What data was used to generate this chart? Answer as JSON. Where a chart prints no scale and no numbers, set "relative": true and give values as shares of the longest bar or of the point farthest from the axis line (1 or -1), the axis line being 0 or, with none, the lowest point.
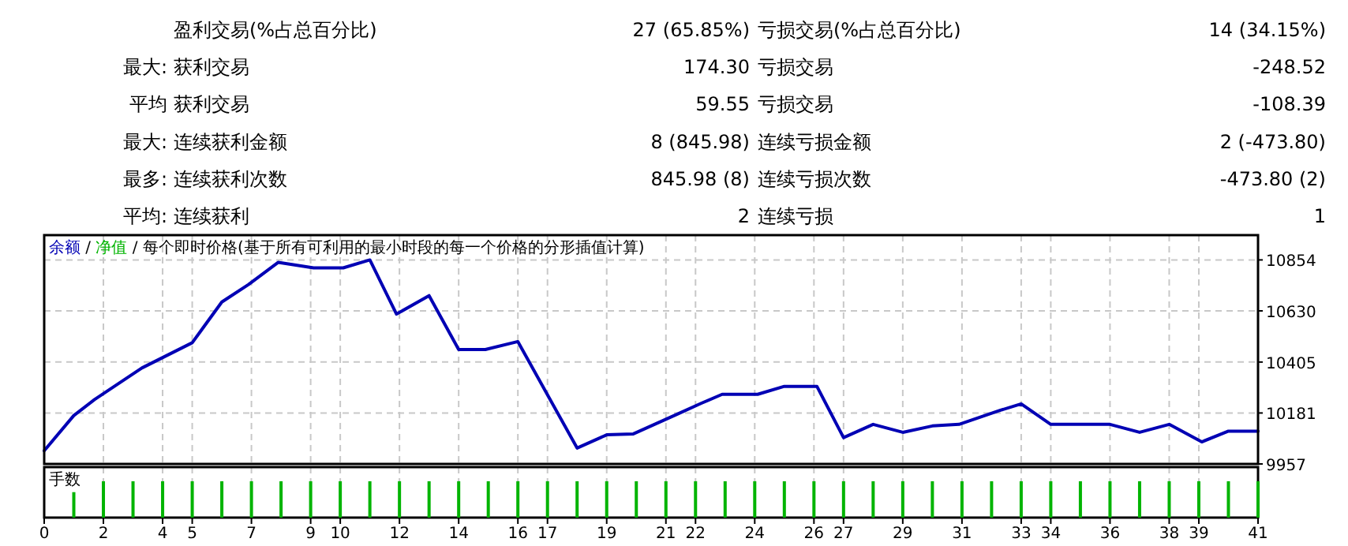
{
  "chart_data": [
    {
      "type": "other",
      "annotations": [
        null,
        "盈利交易(%占总百分比)",
        "27 (65.85%)",
        "亏损交易(%占总百分比)",
        "14 (34.15%)",
        "最大:",
        "获利交易",
        "174.30",
        "亏损交易",
        "-248.52",
        "平均",
        "获利交易",
        "59.55",
        "亏损交易",
        "-108.39",
        "最大:",
        "连续获利金额",
        "8 (845.98)",
        "连续亏损金额",
        "2 (-473.80)",
        "最多:",
        "连续获利次数",
        "845.98 (8)",
        "连续亏损次数",
        "-473.80 (2)",
        "平均:",
        "连续获利",
        "2",
        "连续亏损",
        "1"
      ]
    },
    {
      "type": "line",
      "legend": "top left",
      "grid": true,
      "marker": "none",
      "line_style": "solid",
      "tick_labels": "y",
      "annotations": [
        "/",
        "/ 每个即时价格(基于所有可利用的最小时段的每一个价格的分形插值计算)"
      ],
      "x": [
        0,
        1,
        1.7,
        2.9,
        3.3,
        5,
        6,
        6.9,
        7.9,
        9.1,
        10.1,
        11,
        11.9,
        13,
        14,
        14.9,
        16,
        18,
        19,
        19.9,
        21.4,
        22.2,
        22.9,
        24.1,
        25,
        26.1,
        27,
        28,
        29,
        30,
        30.9,
        32.3,
        33,
        34,
        36,
        37,
        38,
        39.1,
        40,
        41
      ],
      "xlim": [
        0,
        41
      ],
      "ylim": [
        9957,
        10963
      ],
      "yticks": [
        9957,
        10181,
        10405,
        10630,
        10854
      ],
      "xticks": [
        0,
        2,
        4,
        5,
        7,
        9,
        10,
        12,
        14,
        16,
        17,
        19,
        21,
        22,
        24,
        26,
        27,
        29,
        31,
        33,
        34,
        36,
        38,
        39,
        41
      ],
      "series": [
        {
          "name": "余额",
          "color": "#0000b4",
          "values": [
            10015,
            10170,
            10240,
            10344,
            10379,
            10490,
            10669,
            10746,
            10843,
            10819,
            10819,
            10854,
            10616,
            10697,
            10460,
            10460,
            10495,
            10027,
            10085,
            10089,
            10177,
            10224,
            10263,
            10263,
            10298,
            10298,
            10073,
            10131,
            10096,
            10124,
            10131,
            10193,
            10221,
            10131,
            10131,
            10096,
            10131,
            10054,
            10101,
            10101
          ]
        },
        {
          "name": "净值",
          "color": "#00b400",
          "values": [
            null,
            null,
            null,
            null,
            null,
            null,
            null,
            null,
            null,
            null,
            null,
            null,
            null,
            null,
            null,
            null,
            null,
            null,
            null,
            null,
            null,
            null,
            null,
            null,
            null,
            null,
            null,
            null,
            null,
            null,
            null,
            null,
            null,
            null,
            null,
            null,
            null,
            null,
            null,
            null
          ]
        }
      ]
    },
    {
      "type": "bar",
      "title": "手数",
      "relative": true,
      "grid": "x",
      "tick_labels": "x",
      "xlim": [
        0,
        41
      ],
      "xticks": [
        0,
        2,
        4,
        5,
        7,
        9,
        10,
        12,
        14,
        16,
        17,
        19,
        21,
        22,
        24,
        26,
        27,
        29,
        31,
        33,
        34,
        36,
        38,
        39,
        41
      ],
      "x": [
        1,
        2,
        3,
        4,
        5,
        6,
        7,
        8,
        9,
        10,
        11,
        12,
        13,
        14,
        15,
        16,
        17,
        18,
        19,
        20,
        21,
        22,
        23,
        24,
        25,
        26,
        27,
        28,
        29,
        30,
        31,
        32,
        33,
        34,
        35,
        36,
        37,
        38,
        39,
        40,
        41
      ],
      "series": [
        {
          "color": "#00b400",
          "values": [
            0.7,
            1,
            1,
            1,
            1,
            1,
            1,
            1,
            1,
            1,
            1,
            1,
            1,
            1,
            1,
            1,
            1,
            1,
            1,
            1,
            1,
            1,
            1,
            1,
            1,
            1,
            1,
            1,
            1,
            1,
            1,
            1,
            1,
            1,
            1,
            1,
            1,
            1,
            1,
            1,
            1
          ]
        }
      ]
    }
  ]
}
